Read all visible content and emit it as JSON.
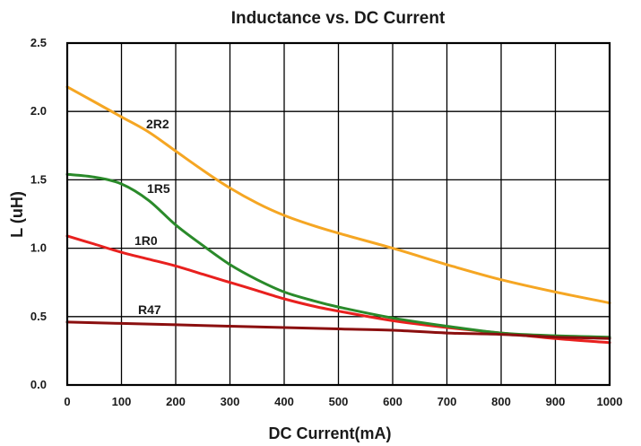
{
  "chart_data": {
    "type": "line",
    "title": "Inductance vs. DC Current",
    "xlabel": "DC Current(mA)",
    "ylabel": "L (uH)",
    "xlim": [
      0,
      1000
    ],
    "ylim": [
      0,
      2.5
    ],
    "xticks": [
      "0",
      "100",
      "200",
      "300",
      "400",
      "500",
      "600",
      "700",
      "800",
      "900",
      "1000"
    ],
    "yticks": [
      "0.0",
      "0.5",
      "1.0",
      "1.5",
      "2.0",
      "2.5"
    ],
    "grid": true,
    "series": [
      {
        "name": "2R2",
        "color": "#f5a623",
        "x": [
          0,
          50,
          100,
          150,
          200,
          250,
          300,
          350,
          400,
          450,
          500,
          600,
          700,
          800,
          900,
          1000
        ],
        "y": [
          2.18,
          2.07,
          1.96,
          1.85,
          1.71,
          1.57,
          1.44,
          1.33,
          1.24,
          1.17,
          1.11,
          1.0,
          0.88,
          0.77,
          0.68,
          0.6
        ]
      },
      {
        "name": "1R5",
        "color": "#2a8a2a",
        "x": [
          0,
          50,
          100,
          150,
          200,
          250,
          300,
          350,
          400,
          450,
          500,
          600,
          700,
          800,
          900,
          1000
        ],
        "y": [
          1.54,
          1.52,
          1.47,
          1.35,
          1.17,
          1.02,
          0.88,
          0.77,
          0.68,
          0.62,
          0.57,
          0.49,
          0.43,
          0.38,
          0.36,
          0.35
        ]
      },
      {
        "name": "1R0",
        "color": "#e8201e",
        "x": [
          0,
          50,
          100,
          150,
          200,
          250,
          300,
          350,
          400,
          450,
          500,
          600,
          700,
          800,
          900,
          1000
        ],
        "y": [
          1.09,
          1.03,
          0.97,
          0.92,
          0.87,
          0.81,
          0.75,
          0.69,
          0.63,
          0.58,
          0.54,
          0.47,
          0.42,
          0.38,
          0.34,
          0.31
        ]
      },
      {
        "name": "R47",
        "color": "#8b0f0f",
        "x": [
          0,
          100,
          200,
          300,
          400,
          500,
          600,
          700,
          800,
          900,
          1000
        ],
        "y": [
          0.46,
          0.45,
          0.44,
          0.43,
          0.42,
          0.41,
          0.4,
          0.38,
          0.37,
          0.35,
          0.34
        ]
      }
    ]
  }
}
